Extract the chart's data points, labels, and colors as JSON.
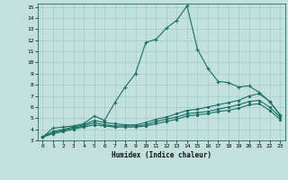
{
  "title": "",
  "xlabel": "Humidex (Indice chaleur)",
  "bg_color": "#c2e0dc",
  "grid_color": "#a0ccc8",
  "line_color": "#1a6e64",
  "xlim": [
    -0.5,
    23.5
  ],
  "ylim": [
    3,
    15.3
  ],
  "xticks": [
    0,
    1,
    2,
    3,
    4,
    5,
    6,
    7,
    8,
    9,
    10,
    11,
    12,
    13,
    14,
    15,
    16,
    17,
    18,
    19,
    20,
    21,
    22,
    23
  ],
  "yticks": [
    3,
    4,
    5,
    6,
    7,
    8,
    9,
    10,
    11,
    12,
    13,
    14,
    15
  ],
  "line1_x": [
    0,
    1,
    2,
    3,
    4,
    5,
    6,
    7,
    8,
    9,
    10,
    11,
    12,
    13,
    14,
    15,
    16,
    17,
    18,
    19,
    20,
    21,
    22,
    23
  ],
  "line1_y": [
    3.3,
    4.1,
    4.2,
    4.3,
    4.5,
    5.2,
    4.8,
    6.4,
    7.8,
    9.0,
    11.8,
    12.1,
    13.1,
    13.8,
    15.1,
    11.2,
    9.5,
    8.3,
    8.2,
    7.8,
    7.9,
    7.3,
    6.5,
    5.3
  ],
  "line2_x": [
    0,
    1,
    2,
    3,
    4,
    5,
    6,
    7,
    8,
    9,
    10,
    11,
    12,
    13,
    14,
    15,
    16,
    17,
    18,
    19,
    20,
    21,
    22,
    23
  ],
  "line2_y": [
    3.3,
    3.8,
    4.0,
    4.2,
    4.4,
    4.8,
    4.6,
    4.5,
    4.4,
    4.4,
    4.6,
    4.9,
    5.1,
    5.4,
    5.7,
    5.8,
    6.0,
    6.2,
    6.4,
    6.6,
    7.0,
    7.2,
    6.5,
    5.3
  ],
  "line3_x": [
    0,
    1,
    2,
    3,
    4,
    5,
    6,
    7,
    8,
    9,
    10,
    11,
    12,
    13,
    14,
    15,
    16,
    17,
    18,
    19,
    20,
    21,
    22,
    23
  ],
  "line3_y": [
    3.3,
    3.7,
    3.9,
    4.1,
    4.3,
    4.6,
    4.4,
    4.3,
    4.3,
    4.3,
    4.4,
    4.7,
    4.9,
    5.1,
    5.4,
    5.5,
    5.6,
    5.8,
    6.0,
    6.2,
    6.5,
    6.6,
    6.0,
    5.1
  ],
  "line4_x": [
    0,
    1,
    2,
    3,
    4,
    5,
    6,
    7,
    8,
    9,
    10,
    11,
    12,
    13,
    14,
    15,
    16,
    17,
    18,
    19,
    20,
    21,
    22,
    23
  ],
  "line4_y": [
    3.3,
    3.6,
    3.8,
    4.0,
    4.2,
    4.4,
    4.3,
    4.2,
    4.2,
    4.2,
    4.3,
    4.5,
    4.7,
    4.9,
    5.2,
    5.3,
    5.4,
    5.6,
    5.7,
    5.9,
    6.2,
    6.3,
    5.7,
    4.9
  ]
}
